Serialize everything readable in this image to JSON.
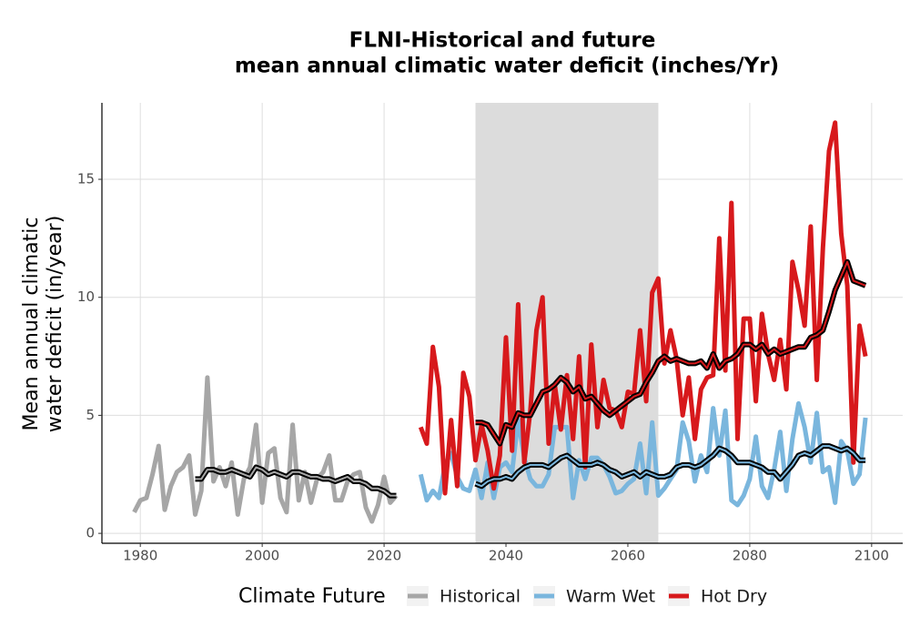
{
  "chart_data": {
    "type": "line",
    "title": [
      "FLNI-Historical and future",
      "mean annual climatic water deficit (inches/Yr)"
    ],
    "y_label": [
      "Mean annual climatic",
      "water deficit (in/year)"
    ],
    "legend_title": "Climate Future",
    "xlim": [
      1973.7,
      2105.1
    ],
    "ylim": [
      -0.42,
      18.24
    ],
    "xticks": [
      1980,
      2000,
      2020,
      2040,
      2060,
      2080,
      2100
    ],
    "yticks": [
      0,
      5,
      10,
      15
    ],
    "grid": true,
    "shade": [
      2035,
      2065
    ],
    "series": [
      {
        "name": "Historical",
        "color": "#a6a6a6",
        "x": [
          1979,
          1980,
          1981,
          1982,
          1983,
          1984,
          1985,
          1986,
          1987,
          1988,
          1989,
          1990,
          1991,
          1992,
          1993,
          1994,
          1995,
          1996,
          1997,
          1998,
          1999,
          2000,
          2001,
          2002,
          2003,
          2004,
          2005,
          2006,
          2007,
          2008,
          2009,
          2010,
          2011,
          2012,
          2013,
          2014,
          2015,
          2016,
          2017,
          2018,
          2019,
          2020,
          2021,
          2022
        ],
        "values": [
          0.9,
          1.4,
          1.5,
          2.5,
          3.7,
          1.0,
          2.0,
          2.6,
          2.8,
          3.3,
          0.8,
          1.8,
          6.6,
          2.2,
          2.8,
          2.0,
          3.0,
          0.8,
          2.3,
          2.8,
          4.6,
          1.3,
          3.4,
          3.6,
          1.5,
          0.9,
          4.6,
          1.4,
          2.6,
          1.3,
          2.3,
          2.6,
          3.3,
          1.4,
          1.4,
          2.2,
          2.5,
          2.6,
          1.1,
          0.5,
          1.2,
          2.4,
          1.3,
          1.6
        ],
        "rolling": [
          null,
          null,
          null,
          null,
          null,
          null,
          null,
          null,
          null,
          null,
          2.3,
          2.3,
          2.7,
          2.7,
          2.6,
          2.6,
          2.7,
          2.6,
          2.5,
          2.4,
          2.8,
          2.7,
          2.5,
          2.6,
          2.5,
          2.4,
          2.6,
          2.6,
          2.5,
          2.4,
          2.4,
          2.3,
          2.3,
          2.2,
          2.3,
          2.4,
          2.2,
          2.2,
          2.1,
          1.9,
          1.9,
          1.8,
          1.6,
          1.6
        ]
      },
      {
        "name": "Warm Wet",
        "color": "#7ab6dd",
        "x": [
          2026,
          2027,
          2028,
          2029,
          2030,
          2031,
          2032,
          2033,
          2034,
          2035,
          2036,
          2037,
          2038,
          2039,
          2040,
          2041,
          2042,
          2043,
          2044,
          2045,
          2046,
          2047,
          2048,
          2049,
          2050,
          2051,
          2052,
          2053,
          2054,
          2055,
          2056,
          2057,
          2058,
          2059,
          2060,
          2061,
          2062,
          2063,
          2064,
          2065,
          2066,
          2067,
          2068,
          2069,
          2070,
          2071,
          2072,
          2073,
          2074,
          2075,
          2076,
          2077,
          2078,
          2079,
          2080,
          2081,
          2082,
          2083,
          2084,
          2085,
          2086,
          2087,
          2088,
          2089,
          2090,
          2091,
          2092,
          2093,
          2094,
          2095,
          2096,
          2097,
          2098,
          2099
        ],
        "values": [
          2.5,
          1.4,
          1.8,
          1.5,
          2.9,
          3.4,
          2.4,
          1.9,
          1.8,
          2.7,
          1.5,
          3.0,
          1.5,
          2.8,
          3.0,
          2.6,
          4.8,
          3.2,
          2.3,
          2.0,
          2.0,
          2.5,
          4.5,
          4.5,
          4.5,
          1.5,
          3.1,
          2.3,
          3.2,
          3.2,
          2.9,
          2.4,
          1.7,
          1.8,
          2.1,
          2.3,
          3.8,
          1.7,
          4.7,
          1.6,
          1.9,
          2.3,
          2.7,
          4.7,
          3.9,
          2.2,
          3.3,
          2.6,
          5.3,
          3.3,
          5.2,
          1.4,
          1.2,
          1.6,
          2.3,
          4.1,
          2.0,
          1.5,
          2.7,
          4.3,
          1.8,
          4.0,
          5.5,
          4.5,
          3.0,
          5.1,
          2.6,
          2.8,
          1.3,
          3.9,
          3.5,
          2.1,
          2.5,
          4.9
        ],
        "rolling": [
          null,
          null,
          null,
          null,
          null,
          null,
          null,
          null,
          null,
          2.1,
          2.0,
          2.2,
          2.3,
          2.3,
          2.4,
          2.3,
          2.6,
          2.8,
          2.9,
          2.9,
          2.9,
          2.8,
          3.0,
          3.2,
          3.3,
          3.1,
          2.9,
          2.9,
          2.9,
          3.0,
          2.9,
          2.7,
          2.6,
          2.4,
          2.5,
          2.6,
          2.4,
          2.6,
          2.5,
          2.4,
          2.4,
          2.5,
          2.8,
          2.9,
          2.9,
          2.8,
          2.9,
          3.1,
          3.3,
          3.6,
          3.5,
          3.3,
          3.0,
          3.0,
          3.0,
          2.9,
          2.8,
          2.6,
          2.6,
          2.3,
          2.6,
          2.9,
          3.3,
          3.4,
          3.3,
          3.5,
          3.7,
          3.7,
          3.6,
          3.5,
          3.6,
          3.4,
          3.1,
          3.1
        ]
      },
      {
        "name": "Hot Dry",
        "color": "#d7191c",
        "x": [
          2026,
          2027,
          2028,
          2029,
          2030,
          2031,
          2032,
          2033,
          2034,
          2035,
          2036,
          2037,
          2038,
          2039,
          2040,
          2041,
          2042,
          2043,
          2044,
          2045,
          2046,
          2047,
          2048,
          2049,
          2050,
          2051,
          2052,
          2053,
          2054,
          2055,
          2056,
          2057,
          2058,
          2059,
          2060,
          2061,
          2062,
          2063,
          2064,
          2065,
          2066,
          2067,
          2068,
          2069,
          2070,
          2071,
          2072,
          2073,
          2074,
          2075,
          2076,
          2077,
          2078,
          2079,
          2080,
          2081,
          2082,
          2083,
          2084,
          2085,
          2086,
          2087,
          2088,
          2089,
          2090,
          2091,
          2092,
          2093,
          2094,
          2095,
          2096,
          2097,
          2098,
          2099
        ],
        "values": [
          4.5,
          3.8,
          7.9,
          6.2,
          1.7,
          4.8,
          2.0,
          6.8,
          5.8,
          3.1,
          4.6,
          3.5,
          1.9,
          3.3,
          8.3,
          3.5,
          9.7,
          3.0,
          5.2,
          8.6,
          10.0,
          3.8,
          6.3,
          4.4,
          6.7,
          4.0,
          7.5,
          2.8,
          8.0,
          4.5,
          6.5,
          5.3,
          5.2,
          4.5,
          6.0,
          5.9,
          8.6,
          5.6,
          10.2,
          10.8,
          7.2,
          8.6,
          7.4,
          5.0,
          6.6,
          4.0,
          6.1,
          6.6,
          6.7,
          12.5,
          6.9,
          14.0,
          4.0,
          9.1,
          9.1,
          5.6,
          9.3,
          7.6,
          6.5,
          8.2,
          6.1,
          11.5,
          10.3,
          8.8,
          13.0,
          6.5,
          12.1,
          16.2,
          17.4,
          12.7,
          10.5,
          3.0,
          8.8,
          7.5
        ],
        "rolling": [
          null,
          null,
          null,
          null,
          null,
          null,
          null,
          null,
          null,
          4.7,
          4.7,
          4.6,
          4.2,
          3.8,
          4.6,
          4.5,
          5.1,
          5.0,
          5.0,
          5.5,
          6.0,
          6.1,
          6.3,
          6.6,
          6.4,
          6.0,
          6.2,
          5.7,
          5.8,
          5.5,
          5.2,
          5.0,
          5.2,
          5.4,
          5.6,
          5.8,
          5.9,
          6.4,
          6.8,
          7.3,
          7.5,
          7.3,
          7.4,
          7.3,
          7.2,
          7.2,
          7.3,
          7.0,
          7.6,
          7.0,
          7.3,
          7.4,
          7.6,
          8.0,
          8.0,
          7.8,
          8.0,
          7.6,
          7.8,
          7.6,
          7.7,
          7.8,
          7.9,
          7.9,
          8.3,
          8.4,
          8.6,
          9.4,
          10.3,
          10.9,
          11.5,
          10.7,
          10.6,
          10.5
        ]
      }
    ]
  }
}
